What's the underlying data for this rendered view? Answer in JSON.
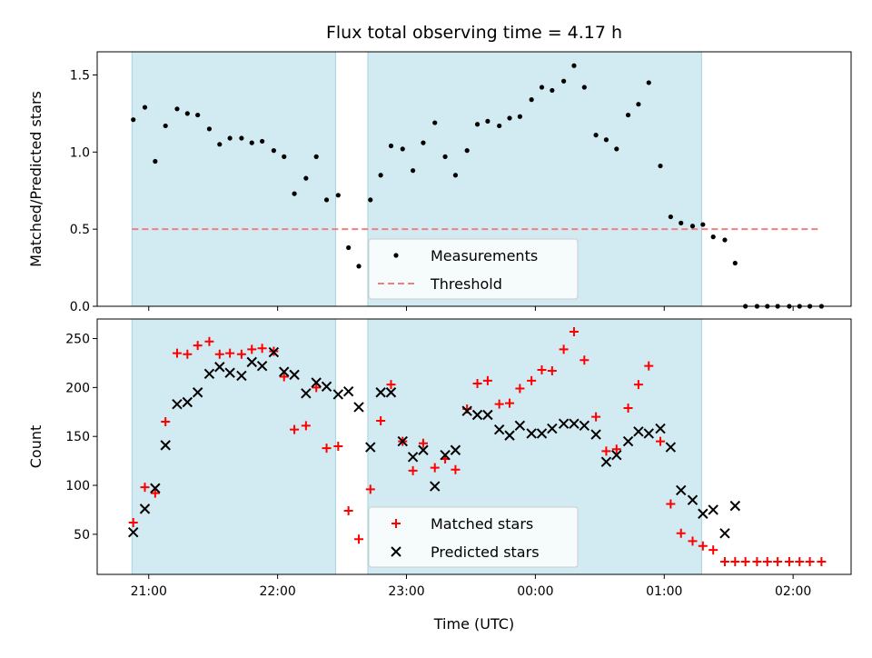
{
  "title": "Flux total observing time = 4.17 h",
  "colors": {
    "shade": "#add8e6",
    "shade_edge": "#a8d4e0",
    "measurement": "#000000",
    "threshold": "#f08080",
    "matched": "#ff0000",
    "predicted": "#000000"
  },
  "chart_data": [
    {
      "type": "scatter",
      "ylabel": "Matched/Predicted stars",
      "xlim": [
        20.6,
        26.45
      ],
      "ylim": [
        0,
        1.65
      ],
      "yticks": [
        0.0,
        0.5,
        1.0,
        1.5
      ],
      "ytick_labels": [
        "0.0",
        "0.5",
        "1.0",
        "1.5"
      ],
      "shaded_intervals": [
        [
          20.87,
          22.45
        ],
        [
          22.7,
          25.29
        ]
      ],
      "threshold": {
        "name": "Threshold",
        "y": 0.5,
        "x_range": [
          20.87,
          26.2
        ]
      },
      "legend": {
        "position": "lower-center",
        "entries": [
          "Measurements",
          "Threshold"
        ]
      },
      "series": [
        {
          "name": "Measurements",
          "x": [
            20.88,
            20.97,
            21.05,
            21.13,
            21.22,
            21.3,
            21.38,
            21.47,
            21.55,
            21.63,
            21.72,
            21.8,
            21.88,
            21.97,
            22.05,
            22.13,
            22.22,
            22.3,
            22.38,
            22.47,
            22.55,
            22.63,
            22.72,
            22.8,
            22.88,
            22.97,
            23.05,
            23.13,
            23.22,
            23.3,
            23.38,
            23.47,
            23.55,
            23.63,
            23.72,
            23.8,
            23.88,
            23.97,
            24.05,
            24.13,
            24.22,
            24.3,
            24.38,
            24.47,
            24.55,
            24.63,
            24.72,
            24.8,
            24.88,
            24.97,
            25.05,
            25.13,
            25.22,
            25.3,
            25.38,
            25.47,
            25.55,
            25.63,
            25.72,
            25.8,
            25.88,
            25.97,
            26.05,
            26.13,
            26.22
          ],
          "y": [
            1.21,
            1.29,
            0.94,
            1.17,
            1.28,
            1.25,
            1.24,
            1.15,
            1.05,
            1.09,
            1.09,
            1.06,
            1.07,
            1.01,
            0.97,
            0.73,
            0.83,
            0.97,
            0.69,
            0.72,
            0.38,
            0.26,
            0.69,
            0.85,
            1.04,
            1.02,
            0.88,
            1.06,
            1.19,
            0.97,
            0.85,
            1.01,
            1.18,
            1.2,
            1.17,
            1.22,
            1.23,
            1.34,
            1.42,
            1.4,
            1.46,
            1.56,
            1.42,
            1.11,
            1.08,
            1.02,
            1.24,
            1.31,
            1.45,
            0.91,
            0.58,
            0.54,
            0.52,
            0.53,
            0.45,
            0.43,
            0.28,
            0.0,
            0.0,
            0.0,
            0.0,
            0.0,
            0.0,
            0.0,
            0.0
          ]
        }
      ]
    },
    {
      "type": "scatter",
      "xlabel": "Time (UTC)",
      "ylabel": "Count",
      "xlim": [
        20.6,
        26.45
      ],
      "ylim": [
        9,
        270
      ],
      "yticks": [
        50,
        100,
        150,
        200,
        250
      ],
      "ytick_labels": [
        "50",
        "100",
        "150",
        "200",
        "250"
      ],
      "xticks": [
        21,
        22,
        23,
        24,
        25,
        26
      ],
      "xtick_labels": [
        "21:00",
        "22:00",
        "23:00",
        "00:00",
        "01:00",
        "02:00"
      ],
      "shaded_intervals": [
        [
          20.87,
          22.45
        ],
        [
          22.7,
          25.29
        ]
      ],
      "legend": {
        "position": "lower-center",
        "entries": [
          "Matched stars",
          "Predicted stars"
        ]
      },
      "series": [
        {
          "name": "Matched stars",
          "marker": "+",
          "x": [
            20.88,
            20.97,
            21.05,
            21.13,
            21.22,
            21.3,
            21.38,
            21.47,
            21.55,
            21.63,
            21.72,
            21.8,
            21.88,
            21.97,
            22.05,
            22.13,
            22.22,
            22.3,
            22.38,
            22.47,
            22.55,
            22.63,
            22.72,
            22.8,
            22.88,
            22.97,
            23.05,
            23.13,
            23.22,
            23.3,
            23.38,
            23.47,
            23.55,
            23.63,
            23.72,
            23.8,
            23.88,
            23.97,
            24.05,
            24.13,
            24.22,
            24.3,
            24.38,
            24.47,
            24.55,
            24.63,
            24.72,
            24.8,
            24.88,
            24.97,
            25.05,
            25.13,
            25.22,
            25.3,
            25.38,
            25.47,
            25.55,
            25.63,
            25.72,
            25.8,
            25.88,
            25.97,
            26.05,
            26.13,
            26.22
          ],
          "y": [
            62,
            98,
            92,
            165,
            235,
            234,
            243,
            247,
            234,
            235,
            234,
            239,
            240,
            237,
            211,
            157,
            161,
            200,
            138,
            140,
            74,
            45,
            96,
            166,
            203,
            145,
            115,
            143,
            118,
            127,
            116,
            178,
            204,
            207,
            183,
            184,
            199,
            207,
            218,
            217,
            239,
            257,
            228,
            170,
            135,
            137,
            179,
            203,
            222,
            145,
            81,
            51,
            43,
            38,
            34,
            22,
            22,
            22,
            22,
            22,
            22,
            22,
            22,
            22,
            22
          ]
        },
        {
          "name": "Predicted stars",
          "marker": "x",
          "x": [
            20.88,
            20.97,
            21.05,
            21.13,
            21.22,
            21.3,
            21.38,
            21.47,
            21.55,
            21.63,
            21.72,
            21.8,
            21.88,
            21.97,
            22.05,
            22.13,
            22.22,
            22.3,
            22.38,
            22.47,
            22.55,
            22.63,
            22.72,
            22.8,
            22.88,
            22.97,
            23.05,
            23.13,
            23.22,
            23.3,
            23.38,
            23.47,
            23.55,
            23.63,
            23.72,
            23.8,
            23.88,
            23.97,
            24.05,
            24.13,
            24.22,
            24.3,
            24.38,
            24.47,
            24.55,
            24.63,
            24.72,
            24.8,
            24.88,
            24.97,
            25.05,
            25.13,
            25.22,
            25.3,
            25.38,
            25.47,
            25.55
          ],
          "y": [
            52,
            76,
            97,
            141,
            183,
            185,
            195,
            214,
            221,
            215,
            212,
            226,
            222,
            236,
            216,
            213,
            194,
            205,
            201,
            193,
            196,
            180,
            139,
            195,
            195,
            145,
            129,
            136,
            99,
            131,
            136,
            176,
            172,
            172,
            157,
            151,
            161,
            153,
            153,
            158,
            163,
            163,
            161,
            152,
            124,
            131,
            145,
            155,
            153,
            158,
            139,
            95,
            85,
            71,
            75,
            51,
            79
          ]
        }
      ]
    }
  ]
}
